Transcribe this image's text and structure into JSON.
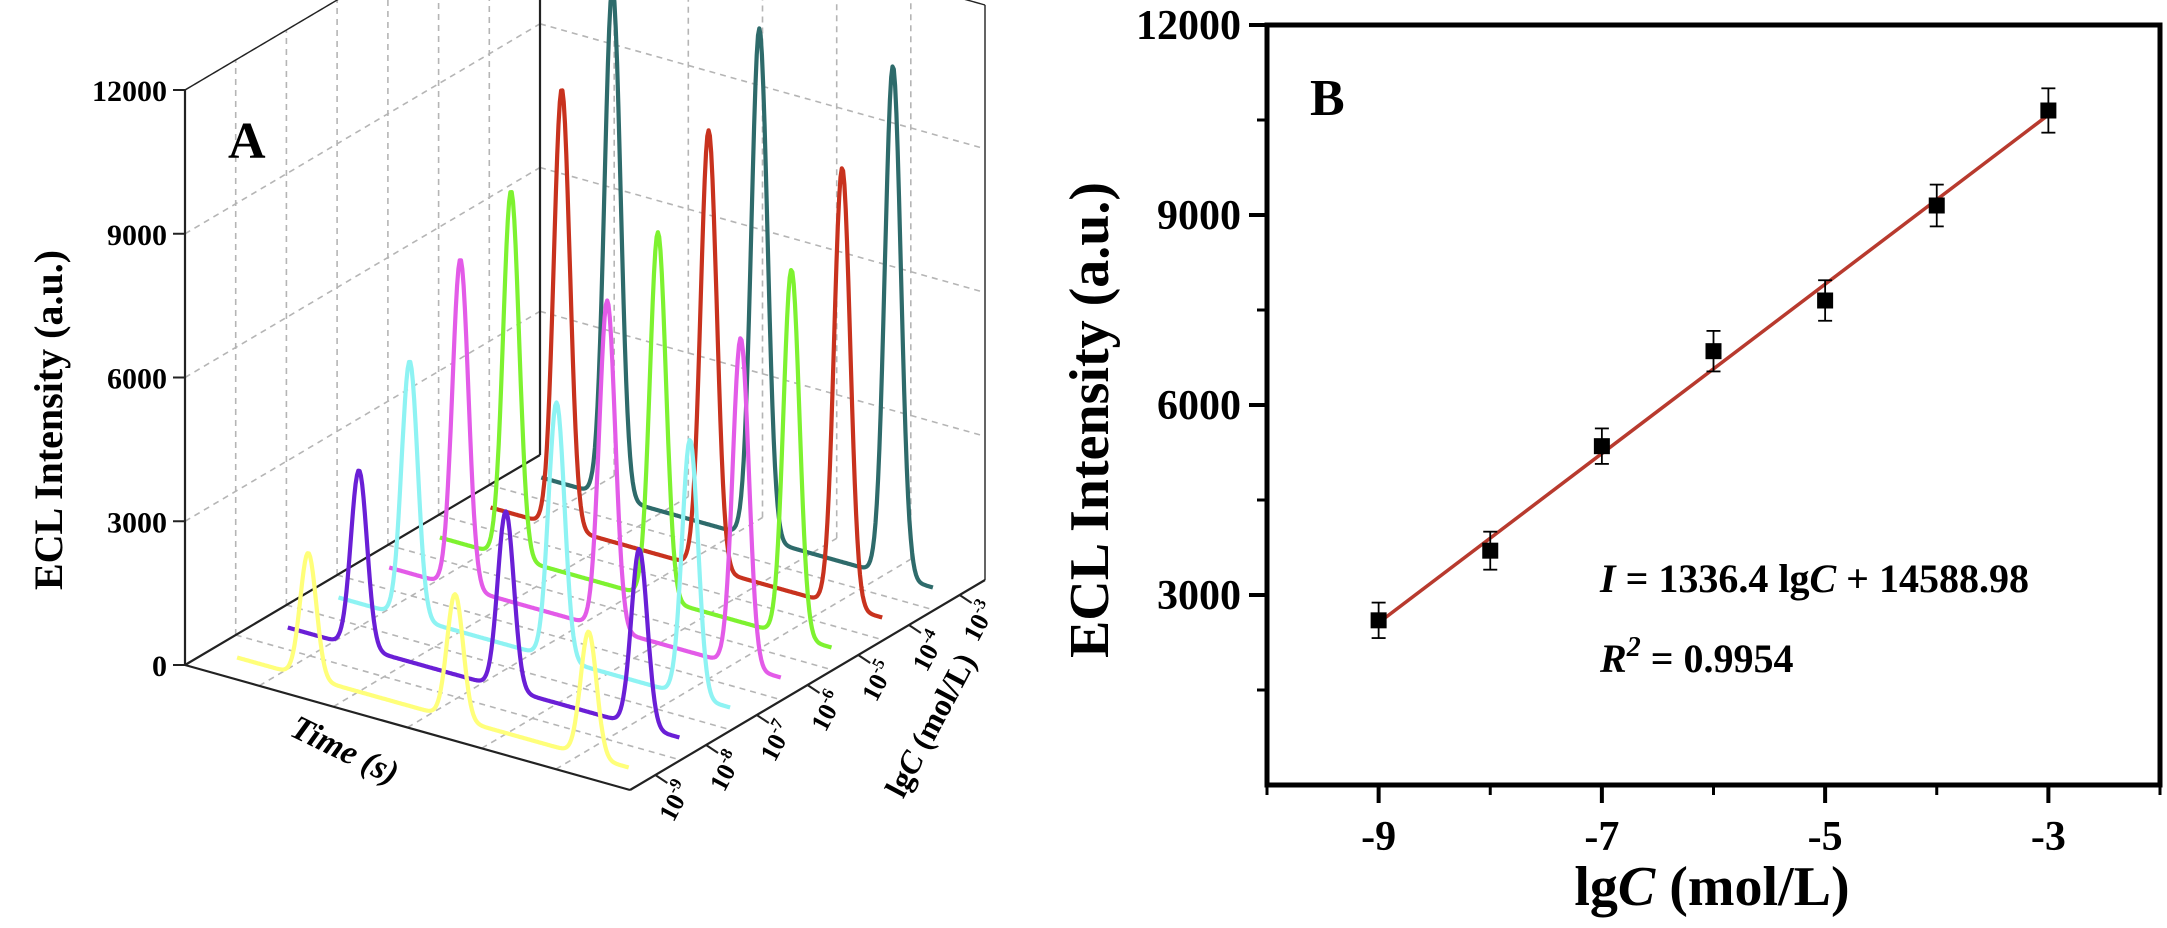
{
  "chart_data": [
    {
      "panel_label": "A",
      "type": "line",
      "subtype": "3d-waterfall",
      "title": "",
      "ylabel": "ECL Intensity (a.u.)",
      "xlabel": "Time (s)",
      "zlabel": "lgC (mol/L)",
      "zlabel_parts": {
        "prefix": "lg",
        "italic": "C",
        "suffix": " (mol/L)"
      },
      "ylim": [
        0,
        12000
      ],
      "yticks": [
        "0",
        "3000",
        "6000",
        "9000",
        "12000"
      ],
      "depth_ticks": [
        {
          "base": "10",
          "exp": "-9"
        },
        {
          "base": "10",
          "exp": "-8"
        },
        {
          "base": "10",
          "exp": "-7"
        },
        {
          "base": "10",
          "exp": "-6"
        },
        {
          "base": "10",
          "exp": "-5"
        },
        {
          "base": "10",
          "exp": "-4"
        },
        {
          "base": "10",
          "exp": "-3"
        }
      ],
      "grid": true,
      "series": [
        {
          "name": "10^-9 mol/L",
          "color": "#ffff7a",
          "peak_count": 3,
          "peak_intensity": 2600
        },
        {
          "name": "10^-8 mol/L",
          "color": "#6a1fd6",
          "peak_count": 3,
          "peak_intensity": 3700
        },
        {
          "name": "10^-7 mol/L",
          "color": "#8ef3f3",
          "peak_count": 3,
          "peak_intensity": 5350
        },
        {
          "name": "10^-6 mol/L",
          "color": "#e35be8",
          "peak_count": 3,
          "peak_intensity": 6850
        },
        {
          "name": "10^-5 mol/L",
          "color": "#7ef230",
          "peak_count": 3,
          "peak_intensity": 7650
        },
        {
          "name": "10^-4 mol/L",
          "color": "#c8321e",
          "peak_count": 3,
          "peak_intensity": 9150
        },
        {
          "name": "10^-3 mol/L",
          "color": "#2e6b6b",
          "peak_count": 3,
          "peak_intensity": 10650
        }
      ]
    },
    {
      "panel_label": "B",
      "type": "scatter",
      "title": "",
      "xlabel": "lgC (mol/L)",
      "xlabel_parts": {
        "prefix": "lg",
        "italic": "C",
        "suffix": " (mol/L)"
      },
      "ylabel": "ECL Intensity (a.u.)",
      "xlim": [
        -10,
        -2
      ],
      "ylim": [
        0,
        12000
      ],
      "xticks": [
        -9,
        -7,
        -5,
        -3
      ],
      "xticks_minor": [
        -10,
        -8,
        -6,
        -4,
        -2
      ],
      "yticks": [
        3000,
        6000,
        9000,
        12000
      ],
      "yticks_minor": [
        1500,
        4500,
        7500,
        10500
      ],
      "ytick_labels": [
        "3000",
        "6000",
        "9000",
        "12000"
      ],
      "xtick_labels": [
        "-9",
        "-7",
        "-5",
        "-3"
      ],
      "points": {
        "x": [
          -9,
          -8,
          -7,
          -6,
          -5,
          -4,
          -3
        ],
        "y": [
          2600,
          3700,
          5350,
          6850,
          7650,
          9150,
          10650
        ],
        "yerr": [
          280,
          300,
          280,
          320,
          320,
          330,
          350
        ]
      },
      "fit": {
        "slope": 1336.4,
        "intercept": 14588.98,
        "color": "#b83a2e"
      },
      "annotations": {
        "equation": {
          "var": "I",
          "eq": " = 1336.4 lg",
          "var2": "C",
          "rest": " + 14588.98"
        },
        "r2": {
          "base": "R",
          "sup": "2",
          "rest": " = 0.9954"
        }
      }
    }
  ]
}
